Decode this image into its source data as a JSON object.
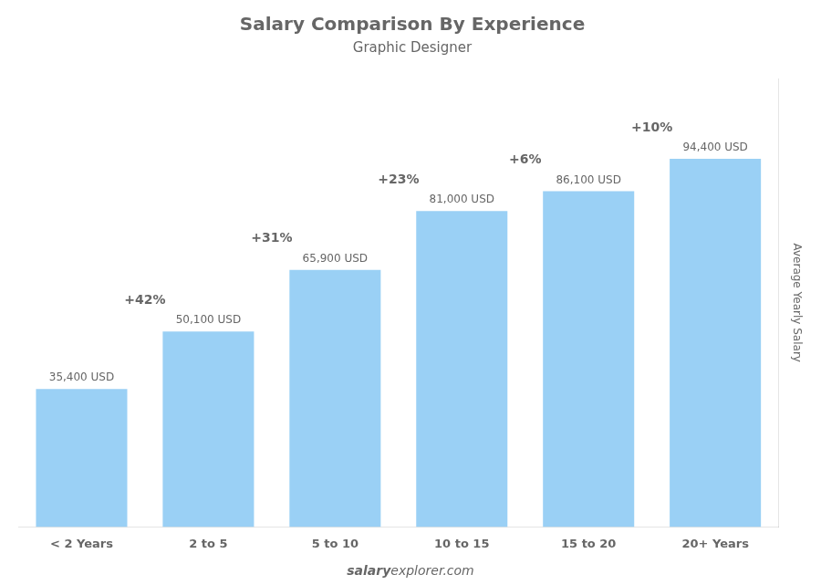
{
  "chart_data": {
    "type": "bar",
    "title": "Salary Comparison By Experience",
    "subtitle": "Graphic Designer",
    "categories": [
      "< 2 Years",
      "2 to 5",
      "5 to 10",
      "10 to 15",
      "15 to 20",
      "20+ Years"
    ],
    "values": [
      35400,
      50100,
      65900,
      81000,
      86100,
      94400
    ],
    "value_labels": [
      "35,400 USD",
      "50,100 USD",
      "65,900 USD",
      "81,000 USD",
      "86,100 USD",
      "94,400 USD"
    ],
    "annotations": [
      "+42%",
      "+31%",
      "+23%",
      "+6%",
      "+10%"
    ],
    "ylabel": "Average Yearly Salary",
    "footer": [
      "salary",
      "explorer.com"
    ],
    "ylim": [
      0,
      115000
    ],
    "yticks": [],
    "tick_labels": "x",
    "grid": false
  }
}
